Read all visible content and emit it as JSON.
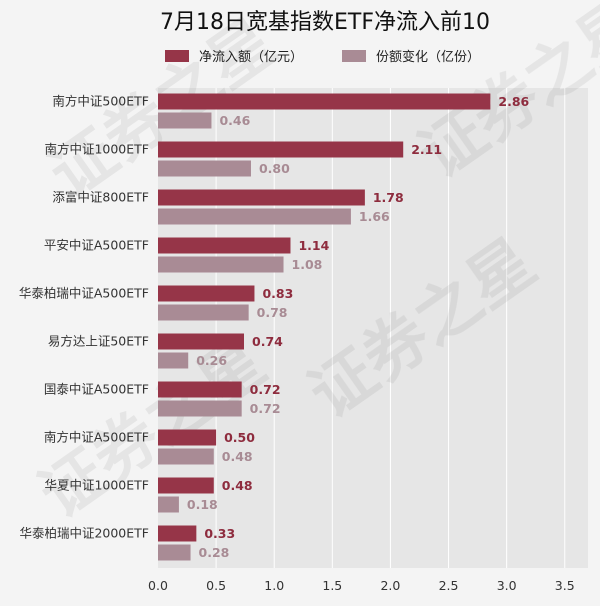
{
  "chart_data": {
    "type": "bar",
    "orientation": "horizontal",
    "title": "7月18日宽基指数ETF净流入前10",
    "categories": [
      "南方中证500ETF",
      "南方中证1000ETF",
      "添富中证800ETF",
      "平安中证A500ETF",
      "华泰柏瑞中证A500ETF",
      "易方达上证50ETF",
      "国泰中证A500ETF",
      "南方中证A500ETF",
      "华夏中证1000ETF",
      "华泰柏瑞中证2000ETF"
    ],
    "series": [
      {
        "name": "净流入额（亿元）",
        "color": "#963548",
        "values": [
          2.86,
          2.11,
          1.78,
          1.14,
          0.83,
          0.74,
          0.72,
          0.5,
          0.48,
          0.33
        ]
      },
      {
        "name": "份额变化（亿份）",
        "color": "#a98b95",
        "values": [
          0.46,
          0.8,
          1.66,
          1.08,
          0.78,
          0.26,
          0.72,
          0.48,
          0.18,
          0.28
        ]
      }
    ],
    "value_labels": [
      [
        "2.86",
        "2.11",
        "1.78",
        "1.14",
        "0.83",
        "0.74",
        "0.72",
        "0.50",
        "0.48",
        "0.33"
      ],
      [
        "0.46",
        "0.80",
        "1.66",
        "1.08",
        "0.78",
        "0.26",
        "0.72",
        "0.48",
        "0.18",
        "0.28"
      ]
    ],
    "xlim": [
      0,
      3.7
    ],
    "xticks": [
      0,
      0.5,
      1.0,
      1.5,
      2.0,
      2.5,
      3.0,
      3.5
    ],
    "xtick_labels": [
      "0.0",
      "0.5",
      "1.0",
      "1.5",
      "2.0",
      "2.5",
      "3.0",
      "3.5"
    ],
    "grid": true,
    "legend_position": "top"
  },
  "watermark": "证券之星"
}
